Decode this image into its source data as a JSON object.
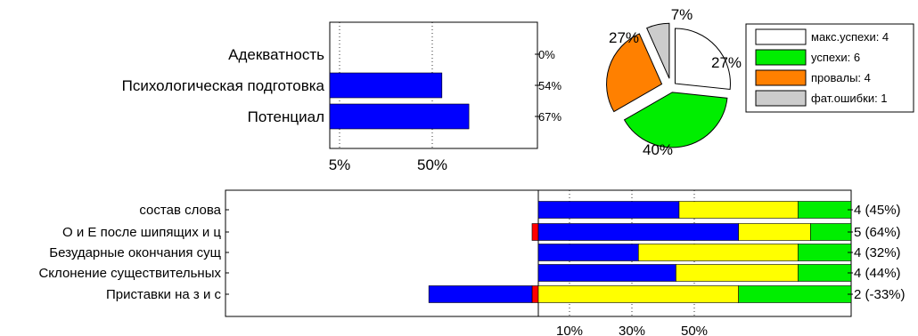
{
  "chart_data": [
    {
      "type": "bar",
      "orientation": "horizontal",
      "categories": [
        "Адекватность",
        "Психологическая подготовка",
        "Потенциал"
      ],
      "values": [
        0,
        54,
        67
      ],
      "value_labels": [
        "0%",
        "54%",
        "67%"
      ],
      "xtick_labels": [
        "5%",
        "50%"
      ],
      "colors": {
        "bar": "#0000ff"
      },
      "grid": "dotted vertical lines"
    },
    {
      "type": "pie",
      "slices": [
        {
          "label": "макс.успехи: 4",
          "value": 4,
          "pct_label": "27%",
          "color": "#ffffff"
        },
        {
          "label": "успехи: 6",
          "value": 6,
          "pct_label": "40%",
          "color": "#00ee00"
        },
        {
          "label": "провалы: 4",
          "value": 4,
          "pct_label": "27%",
          "color": "#ff8000"
        },
        {
          "label": "фат.ошибки: 1",
          "value": 1,
          "pct_label": "7%",
          "color": "#cccccc"
        }
      ],
      "legend": "top-right",
      "exploded": true
    },
    {
      "type": "bar",
      "orientation": "horizontal",
      "stacked": true,
      "categories": [
        "состав слова",
        "О и Е после шипящих и ц",
        "Безударные окончания сущ",
        "Склонение существительных",
        "Приставки на з и с"
      ],
      "category_labels_visible": [
        "состав слова",
        "О и Е после шипящих и ц",
        "Безударные окончания сущ",
        "Склонение существительных",
        "Приставки на з и с"
      ],
      "series": [
        {
          "color": "#ff0000",
          "values": [
            0,
            -2,
            0,
            0,
            -2
          ]
        },
        {
          "color": "#0000ff",
          "values": [
            45,
            64,
            32,
            44,
            -33
          ]
        },
        {
          "color": "#ffff00",
          "values": [
            38,
            23,
            51,
            39,
            64
          ]
        },
        {
          "color": "#00ee00",
          "values": [
            17,
            13,
            17,
            17,
            36
          ]
        }
      ],
      "value_labels": [
        "4 (45%)",
        "5 (64%)",
        "4 (32%)",
        "4 (44%)",
        "2 (-33%)"
      ],
      "xtick_labels": [
        "10%",
        "30%",
        "50%"
      ],
      "grid": "dotted vertical lines"
    }
  ]
}
